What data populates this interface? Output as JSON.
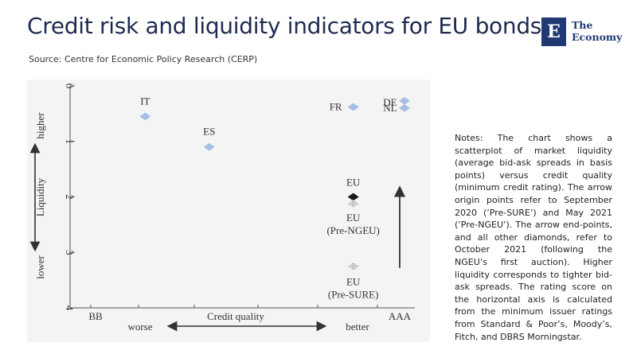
{
  "header": {
    "title": "Credit risk and liquidity indicators for EU bonds",
    "source": "Source: Centre for Economic Policy Research (CERP)"
  },
  "logo": {
    "mark": "E",
    "line1": "The",
    "line2": "Economy",
    "icon": "the-economy-logo",
    "color": "#1f3a72"
  },
  "notes": "Notes: The chart shows a scatterplot of market liquidity (average bid-ask spreads in basis points) versus credit quality (minimum credit rating). The arrow origin points refer to September 2020 (’Pre-SURE’) and May 2021 (’Pre-NGEU’). The arrow end-points, and all other diamonds, refer to October 2021 (following the NGEU’s first auction). Higher liquidity corresponds to tighter bid-ask spreads. The rating score on the horizontal axis is calculated from the minimum issuer ratings from Standard & Poor’s, Moody’s, Fitch, and DBRS Morningstar.",
  "chart_data": {
    "type": "scatter",
    "y_axis": {
      "ticks": [
        "0",
        "1",
        "2",
        "3",
        "4"
      ],
      "ylim": [
        0,
        4
      ],
      "inverted": true,
      "label": "Liquidity",
      "higher_label": "higher",
      "lower_label": "lower"
    },
    "x_axis": {
      "label": "Credit quality",
      "worse_label": "worse",
      "better_label": "better",
      "end_labels": [
        "BB",
        "AAA"
      ]
    },
    "points": [
      {
        "label": "IT",
        "x": 0.18,
        "y": 0.55,
        "color": "#a8bde3"
      },
      {
        "label": "ES",
        "x": 0.38,
        "y": 1.1,
        "color": "#a8bde3"
      },
      {
        "label": "FR",
        "x": 0.83,
        "y": 0.38,
        "color": "#a8bde3"
      },
      {
        "label": "DE",
        "x": 0.99,
        "y": 0.27,
        "color": "#a8bde3"
      },
      {
        "label": "NL",
        "x": 0.99,
        "y": 0.4,
        "color": "#a8bde3"
      },
      {
        "label": "EU",
        "x": 0.83,
        "y": 2.0,
        "color": "#1a1a1a"
      },
      {
        "label": "EU (Pre-NGEU)",
        "x": 0.83,
        "y": 2.12,
        "color": "#c4c4c4"
      },
      {
        "label": "EU (Pre-SURE)",
        "x": 0.83,
        "y": 3.25,
        "color": "#c4c4c4"
      }
    ],
    "arrow": {
      "from_y": 3.25,
      "to_y": 1.9
    },
    "grid": false,
    "legend": "none"
  }
}
